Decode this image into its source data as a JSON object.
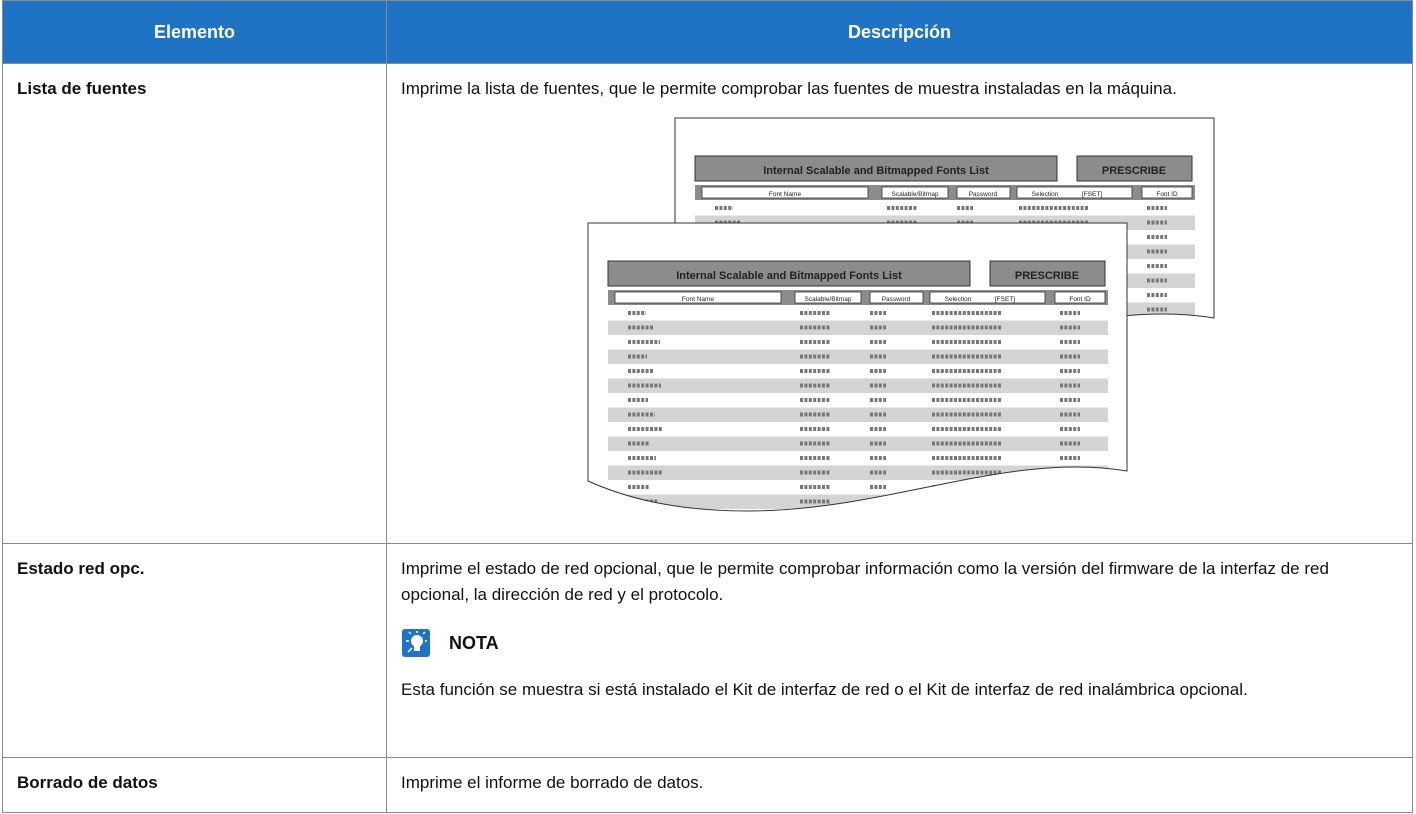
{
  "header": {
    "columns": [
      "Elemento",
      "Descripción"
    ]
  },
  "rows": [
    {
      "item": "Lista de fuentes",
      "description": "Imprime la lista de fuentes, que le permite comprobar las fuentes de muestra instaladas en la máquina.",
      "illustration": {
        "title": "Internal Scalable and Bitmapped Fonts List",
        "brand": "PRESCRIBE",
        "columns": [
          "Font Name",
          "Scalable/Bitmap",
          "Password",
          "Selection",
          "[FSET]",
          "Font ID"
        ]
      }
    },
    {
      "item": "Estado red opc.",
      "description": "Imprime el estado de red opcional, que le permite comprobar información como la versión del firmware de la interfaz de red opcional, la dirección de red y el protocolo.",
      "note": {
        "heading": "NOTA",
        "text": "Esta función se muestra si está instalado el Kit de interfaz de red o el Kit de interfaz de red inalámbrica opcional."
      }
    },
    {
      "item": "Borrado de datos",
      "description": "Imprime el informe de borrado de datos."
    }
  ]
}
